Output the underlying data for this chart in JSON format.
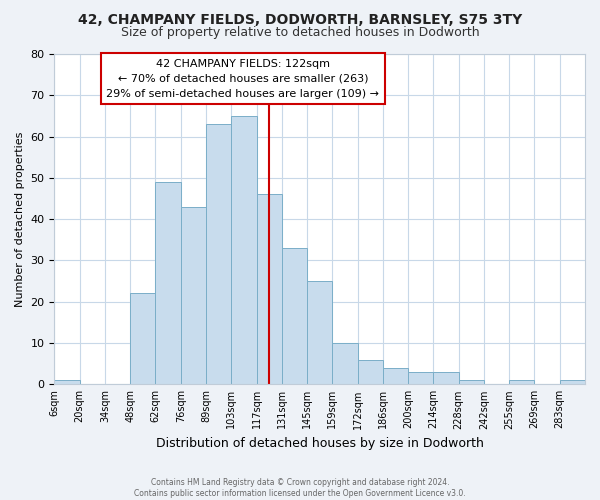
{
  "title": "42, CHAMPANY FIELDS, DODWORTH, BARNSLEY, S75 3TY",
  "subtitle": "Size of property relative to detached houses in Dodworth",
  "xlabel": "Distribution of detached houses by size in Dodworth",
  "ylabel": "Number of detached properties",
  "bin_labels": [
    "6sqm",
    "20sqm",
    "34sqm",
    "48sqm",
    "62sqm",
    "76sqm",
    "89sqm",
    "103sqm",
    "117sqm",
    "131sqm",
    "145sqm",
    "159sqm",
    "172sqm",
    "186sqm",
    "200sqm",
    "214sqm",
    "228sqm",
    "242sqm",
    "255sqm",
    "269sqm",
    "283sqm"
  ],
  "bar_heights": [
    1,
    0,
    0,
    22,
    49,
    43,
    63,
    65,
    46,
    33,
    25,
    10,
    6,
    4,
    3,
    3,
    1,
    0,
    1,
    0,
    1
  ],
  "bar_color": "#c8dced",
  "bar_edgecolor": "#7aaec8",
  "vline_x": 9,
  "vline_color": "#cc0000",
  "ylim": [
    0,
    80
  ],
  "yticks": [
    0,
    10,
    20,
    30,
    40,
    50,
    60,
    70,
    80
  ],
  "annotation_text": "42 CHAMPANY FIELDS: 122sqm\n← 70% of detached houses are smaller (263)\n29% of semi-detached houses are larger (109) →",
  "footer1": "Contains HM Land Registry data © Crown copyright and database right 2024.",
  "footer2": "Contains public sector information licensed under the Open Government Licence v3.0.",
  "bg_color": "#eef2f7",
  "plot_bg_color": "#ffffff",
  "grid_color": "#c8d8e8",
  "title_fontsize": 10,
  "subtitle_fontsize": 9
}
